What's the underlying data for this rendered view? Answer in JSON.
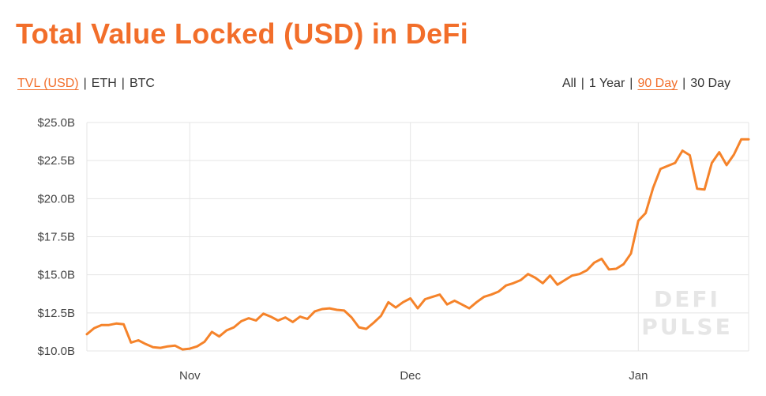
{
  "title": "Total Value Locked (USD) in DeFi",
  "unit_options": [
    {
      "label": "TVL (USD)",
      "active": true
    },
    {
      "label": "ETH",
      "active": false
    },
    {
      "label": "BTC",
      "active": false
    }
  ],
  "range_options": [
    {
      "label": "All",
      "active": false
    },
    {
      "label": "1 Year",
      "active": false
    },
    {
      "label": "90 Day",
      "active": true
    },
    {
      "label": "30 Day",
      "active": false
    }
  ],
  "separator": "|",
  "watermark": {
    "line1": "DEFI",
    "line2": "PULSE"
  },
  "colors": {
    "accent": "#f26e2a",
    "line": "#f5832a",
    "grid": "#e5e5e5",
    "text": "#333333",
    "watermark": "#e6e6e6"
  },
  "chart_data": {
    "type": "line",
    "title": "Total Value Locked (USD) in DeFi",
    "xlabel": "",
    "ylabel": "",
    "ylim": [
      10.0,
      25.0
    ],
    "yticks": [
      10.0,
      12.5,
      15.0,
      17.5,
      20.0,
      22.5,
      25.0
    ],
    "ytick_labels": [
      "$10.0B",
      "$12.5B",
      "$15.0B",
      "$17.5B",
      "$20.0B",
      "$22.5B",
      "$25.0B"
    ],
    "xlim": [
      "2020-10-18",
      "2021-01-16"
    ],
    "xticks": [
      "2020-11-01",
      "2020-12-01",
      "2021-01-01"
    ],
    "xtick_labels": [
      "Nov",
      "Dec",
      "Jan"
    ],
    "grid": true,
    "series": [
      {
        "x": [
          "2020-10-18",
          "2020-10-19",
          "2020-10-20",
          "2020-10-21",
          "2020-10-22",
          "2020-10-23",
          "2020-10-24",
          "2020-10-25",
          "2020-10-26",
          "2020-10-27",
          "2020-10-28",
          "2020-10-29",
          "2020-10-30",
          "2020-10-31",
          "2020-11-01",
          "2020-11-02",
          "2020-11-03",
          "2020-11-04",
          "2020-11-05",
          "2020-11-06",
          "2020-11-07",
          "2020-11-08",
          "2020-11-09",
          "2020-11-10",
          "2020-11-11",
          "2020-11-12",
          "2020-11-13",
          "2020-11-14",
          "2020-11-15",
          "2020-11-16",
          "2020-11-17",
          "2020-11-18",
          "2020-11-19",
          "2020-11-20",
          "2020-11-21",
          "2020-11-22",
          "2020-11-23",
          "2020-11-24",
          "2020-11-25",
          "2020-11-26",
          "2020-11-27",
          "2020-11-28",
          "2020-11-29",
          "2020-11-30",
          "2020-12-01",
          "2020-12-02",
          "2020-12-03",
          "2020-12-04",
          "2020-12-05",
          "2020-12-06",
          "2020-12-07",
          "2020-12-08",
          "2020-12-09",
          "2020-12-10",
          "2020-12-11",
          "2020-12-12",
          "2020-12-13",
          "2020-12-14",
          "2020-12-15",
          "2020-12-16",
          "2020-12-17",
          "2020-12-18",
          "2020-12-19",
          "2020-12-20",
          "2020-12-21",
          "2020-12-22",
          "2020-12-23",
          "2020-12-24",
          "2020-12-25",
          "2020-12-26",
          "2020-12-27",
          "2020-12-28",
          "2020-12-29",
          "2020-12-30",
          "2020-12-31",
          "2021-01-01",
          "2021-01-02",
          "2021-01-03",
          "2021-01-04",
          "2021-01-05",
          "2021-01-06",
          "2021-01-07",
          "2021-01-08",
          "2021-01-09",
          "2021-01-10",
          "2021-01-11",
          "2021-01-12",
          "2021-01-13",
          "2021-01-14",
          "2021-01-15",
          "2021-01-16"
        ],
        "values": [
          11.1,
          11.5,
          11.7,
          11.7,
          11.8,
          11.75,
          10.55,
          10.7,
          10.45,
          10.25,
          10.2,
          10.3,
          10.35,
          10.1,
          10.15,
          10.3,
          10.6,
          11.25,
          10.95,
          11.35,
          11.55,
          11.95,
          12.15,
          12.0,
          12.45,
          12.25,
          12.0,
          12.2,
          11.9,
          12.25,
          12.1,
          12.6,
          12.75,
          12.8,
          12.7,
          12.65,
          12.2,
          11.55,
          11.45,
          11.85,
          12.3,
          13.2,
          12.85,
          13.2,
          13.45,
          12.8,
          13.4,
          13.55,
          13.7,
          13.05,
          13.3,
          13.05,
          12.8,
          13.2,
          13.55,
          13.7,
          13.9,
          14.3,
          14.45,
          14.65,
          15.05,
          14.8,
          14.45,
          14.95,
          14.35,
          14.65,
          14.95,
          15.05,
          15.3,
          15.8,
          16.05,
          15.35,
          15.4,
          15.7,
          16.4,
          18.55,
          19.05,
          20.7,
          21.95,
          22.15,
          22.35,
          23.15,
          22.85,
          20.65,
          20.6,
          22.35,
          23.05,
          22.2,
          22.9,
          23.9,
          23.9
        ]
      }
    ]
  }
}
